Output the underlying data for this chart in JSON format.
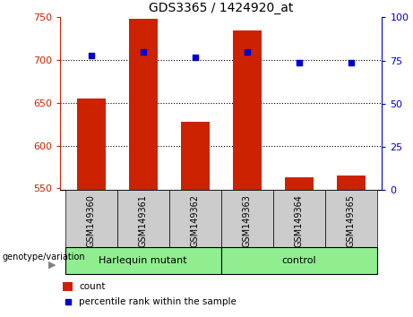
{
  "title": "GDS3365 / 1424920_at",
  "categories": [
    "GSM149360",
    "GSM149361",
    "GSM149362",
    "GSM149363",
    "GSM149364",
    "GSM149365"
  ],
  "bar_values": [
    655,
    748,
    628,
    735,
    563,
    565
  ],
  "bar_bottom": 548,
  "percentile_values": [
    78,
    80,
    77,
    80,
    74,
    74
  ],
  "bar_color": "#cc2200",
  "dot_color": "#0000cc",
  "ylim_left": [
    548,
    750
  ],
  "ylim_right": [
    0,
    100
  ],
  "yticks_left": [
    550,
    600,
    650,
    700,
    750
  ],
  "yticks_right": [
    0,
    25,
    50,
    75,
    100
  ],
  "grid_values": [
    600,
    650,
    700
  ],
  "group1_label": "Harlequin mutant",
  "group2_label": "control",
  "group1_color": "#90ee90",
  "group2_color": "#90ee90",
  "xlabel_left": "genotype/variation",
  "legend_count_label": "count",
  "legend_percentile_label": "percentile rank within the sample",
  "bar_width": 0.55,
  "left_axis_color": "#cc2200",
  "right_axis_color": "#0000cc",
  "tick_box_color": "#cccccc",
  "figure_width": 4.61,
  "figure_height": 3.54
}
